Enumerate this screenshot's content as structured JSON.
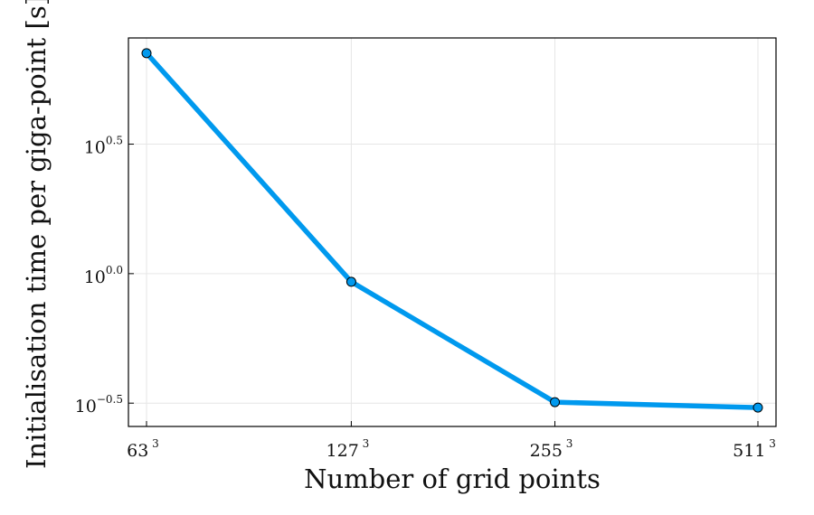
{
  "chart_data": {
    "type": "line",
    "xlabel": "Number of grid points",
    "ylabel": "Initialisation time per giga-point [s]",
    "x_scale": "log",
    "y_scale": "log",
    "grid": true,
    "legend": "none",
    "x_ticks": [
      {
        "value": 250047,
        "base": "63",
        "exp": "3"
      },
      {
        "value": 2048383,
        "base": "127",
        "exp": "3"
      },
      {
        "value": 16581375,
        "base": "255",
        "exp": "3"
      },
      {
        "value": 133432831,
        "base": "511",
        "exp": "3"
      }
    ],
    "y_ticks": [
      {
        "log10": -0.5,
        "base": "10",
        "exp": "−0.5"
      },
      {
        "log10": 0.0,
        "base": "10",
        "exp": "0.0"
      },
      {
        "log10": 0.5,
        "base": "10",
        "exp": "0.5"
      }
    ],
    "y_log10_range": [
      -0.59,
      0.91
    ],
    "series": [
      {
        "color": "#0099ee",
        "x": [
          250047,
          2048383,
          16581375,
          133432831
        ],
        "y": [
          7.1,
          0.93,
          0.319,
          0.304
        ]
      }
    ]
  }
}
